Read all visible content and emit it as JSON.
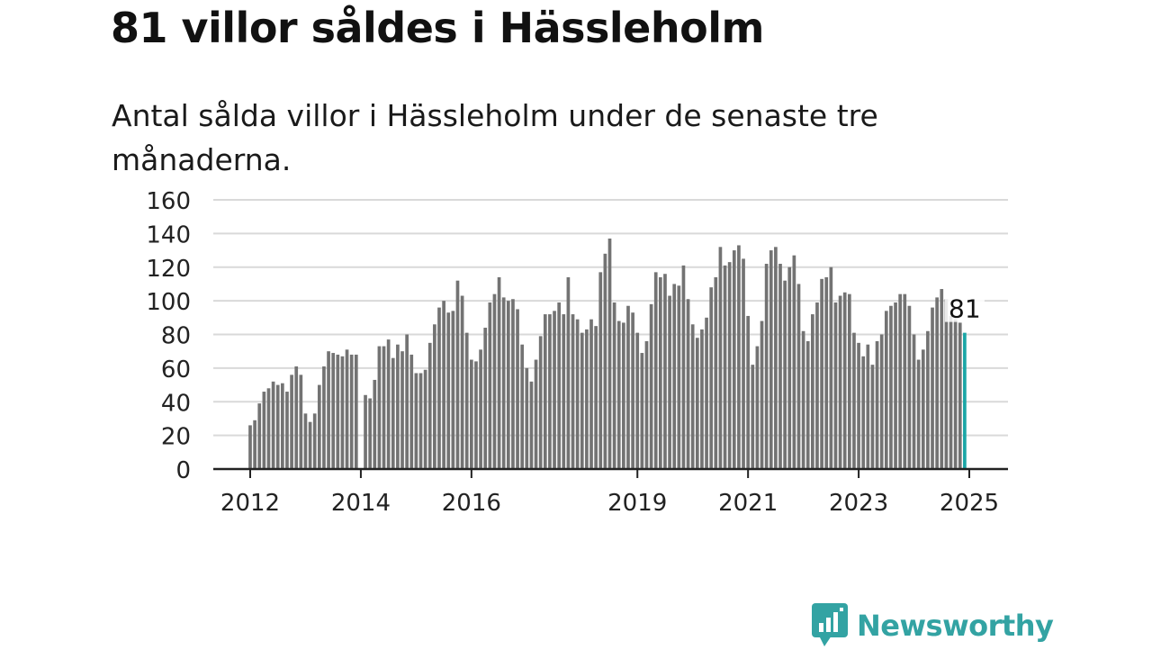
{
  "header": {
    "title": "81 villor såldes i Hässleholm",
    "subtitle": "Antal sålda villor i Hässleholm under de senaste tre månaderna."
  },
  "logo": {
    "text": "Newsworthy",
    "icon": "newsworthy-bar-chart-icon"
  },
  "colors": {
    "bar": "#737373",
    "highlight": "#1aa6a6",
    "grid": "#d9d9d9",
    "axis": "#222222",
    "brand": "#33a3a3"
  },
  "chart_data": {
    "type": "bar",
    "x_start": "2012-01",
    "x_end": "2025-01",
    "x_tick_labels": [
      "2012",
      "2014",
      "2016",
      "2019",
      "2021",
      "2023",
      "2025"
    ],
    "ylim": [
      0,
      160
    ],
    "y_ticks": [
      0,
      20,
      40,
      60,
      80,
      100,
      120,
      140,
      160
    ],
    "grid": true,
    "highlight_last": true,
    "annotation": "81",
    "values": [
      26,
      29,
      39,
      46,
      48,
      52,
      50,
      51,
      46,
      56,
      61,
      56,
      33,
      28,
      33,
      50,
      61,
      70,
      69,
      68,
      67,
      71,
      68,
      68,
      0,
      44,
      42,
      53,
      73,
      73,
      77,
      66,
      74,
      70,
      80,
      68,
      57,
      57,
      59,
      75,
      86,
      96,
      100,
      93,
      94,
      112,
      103,
      81,
      65,
      64,
      71,
      84,
      99,
      104,
      114,
      102,
      100,
      101,
      95,
      74,
      60,
      52,
      65,
      79,
      92,
      92,
      94,
      99,
      92,
      114,
      92,
      89,
      81,
      83,
      89,
      85,
      117,
      128,
      137,
      99,
      88,
      87,
      97,
      93,
      81,
      69,
      76,
      98,
      117,
      114,
      116,
      103,
      110,
      109,
      121,
      101,
      86,
      78,
      83,
      90,
      108,
      114,
      132,
      121,
      123,
      130,
      133,
      125,
      91,
      62,
      73,
      88,
      122,
      130,
      132,
      122,
      112,
      120,
      127,
      110,
      82,
      76,
      92,
      99,
      113,
      114,
      120,
      99,
      103,
      105,
      104,
      81,
      75,
      67,
      74,
      62,
      76,
      80,
      94,
      97,
      99,
      104,
      104,
      97,
      80,
      65,
      71,
      82,
      96,
      102,
      107,
      101,
      91,
      89,
      87,
      81
    ]
  }
}
